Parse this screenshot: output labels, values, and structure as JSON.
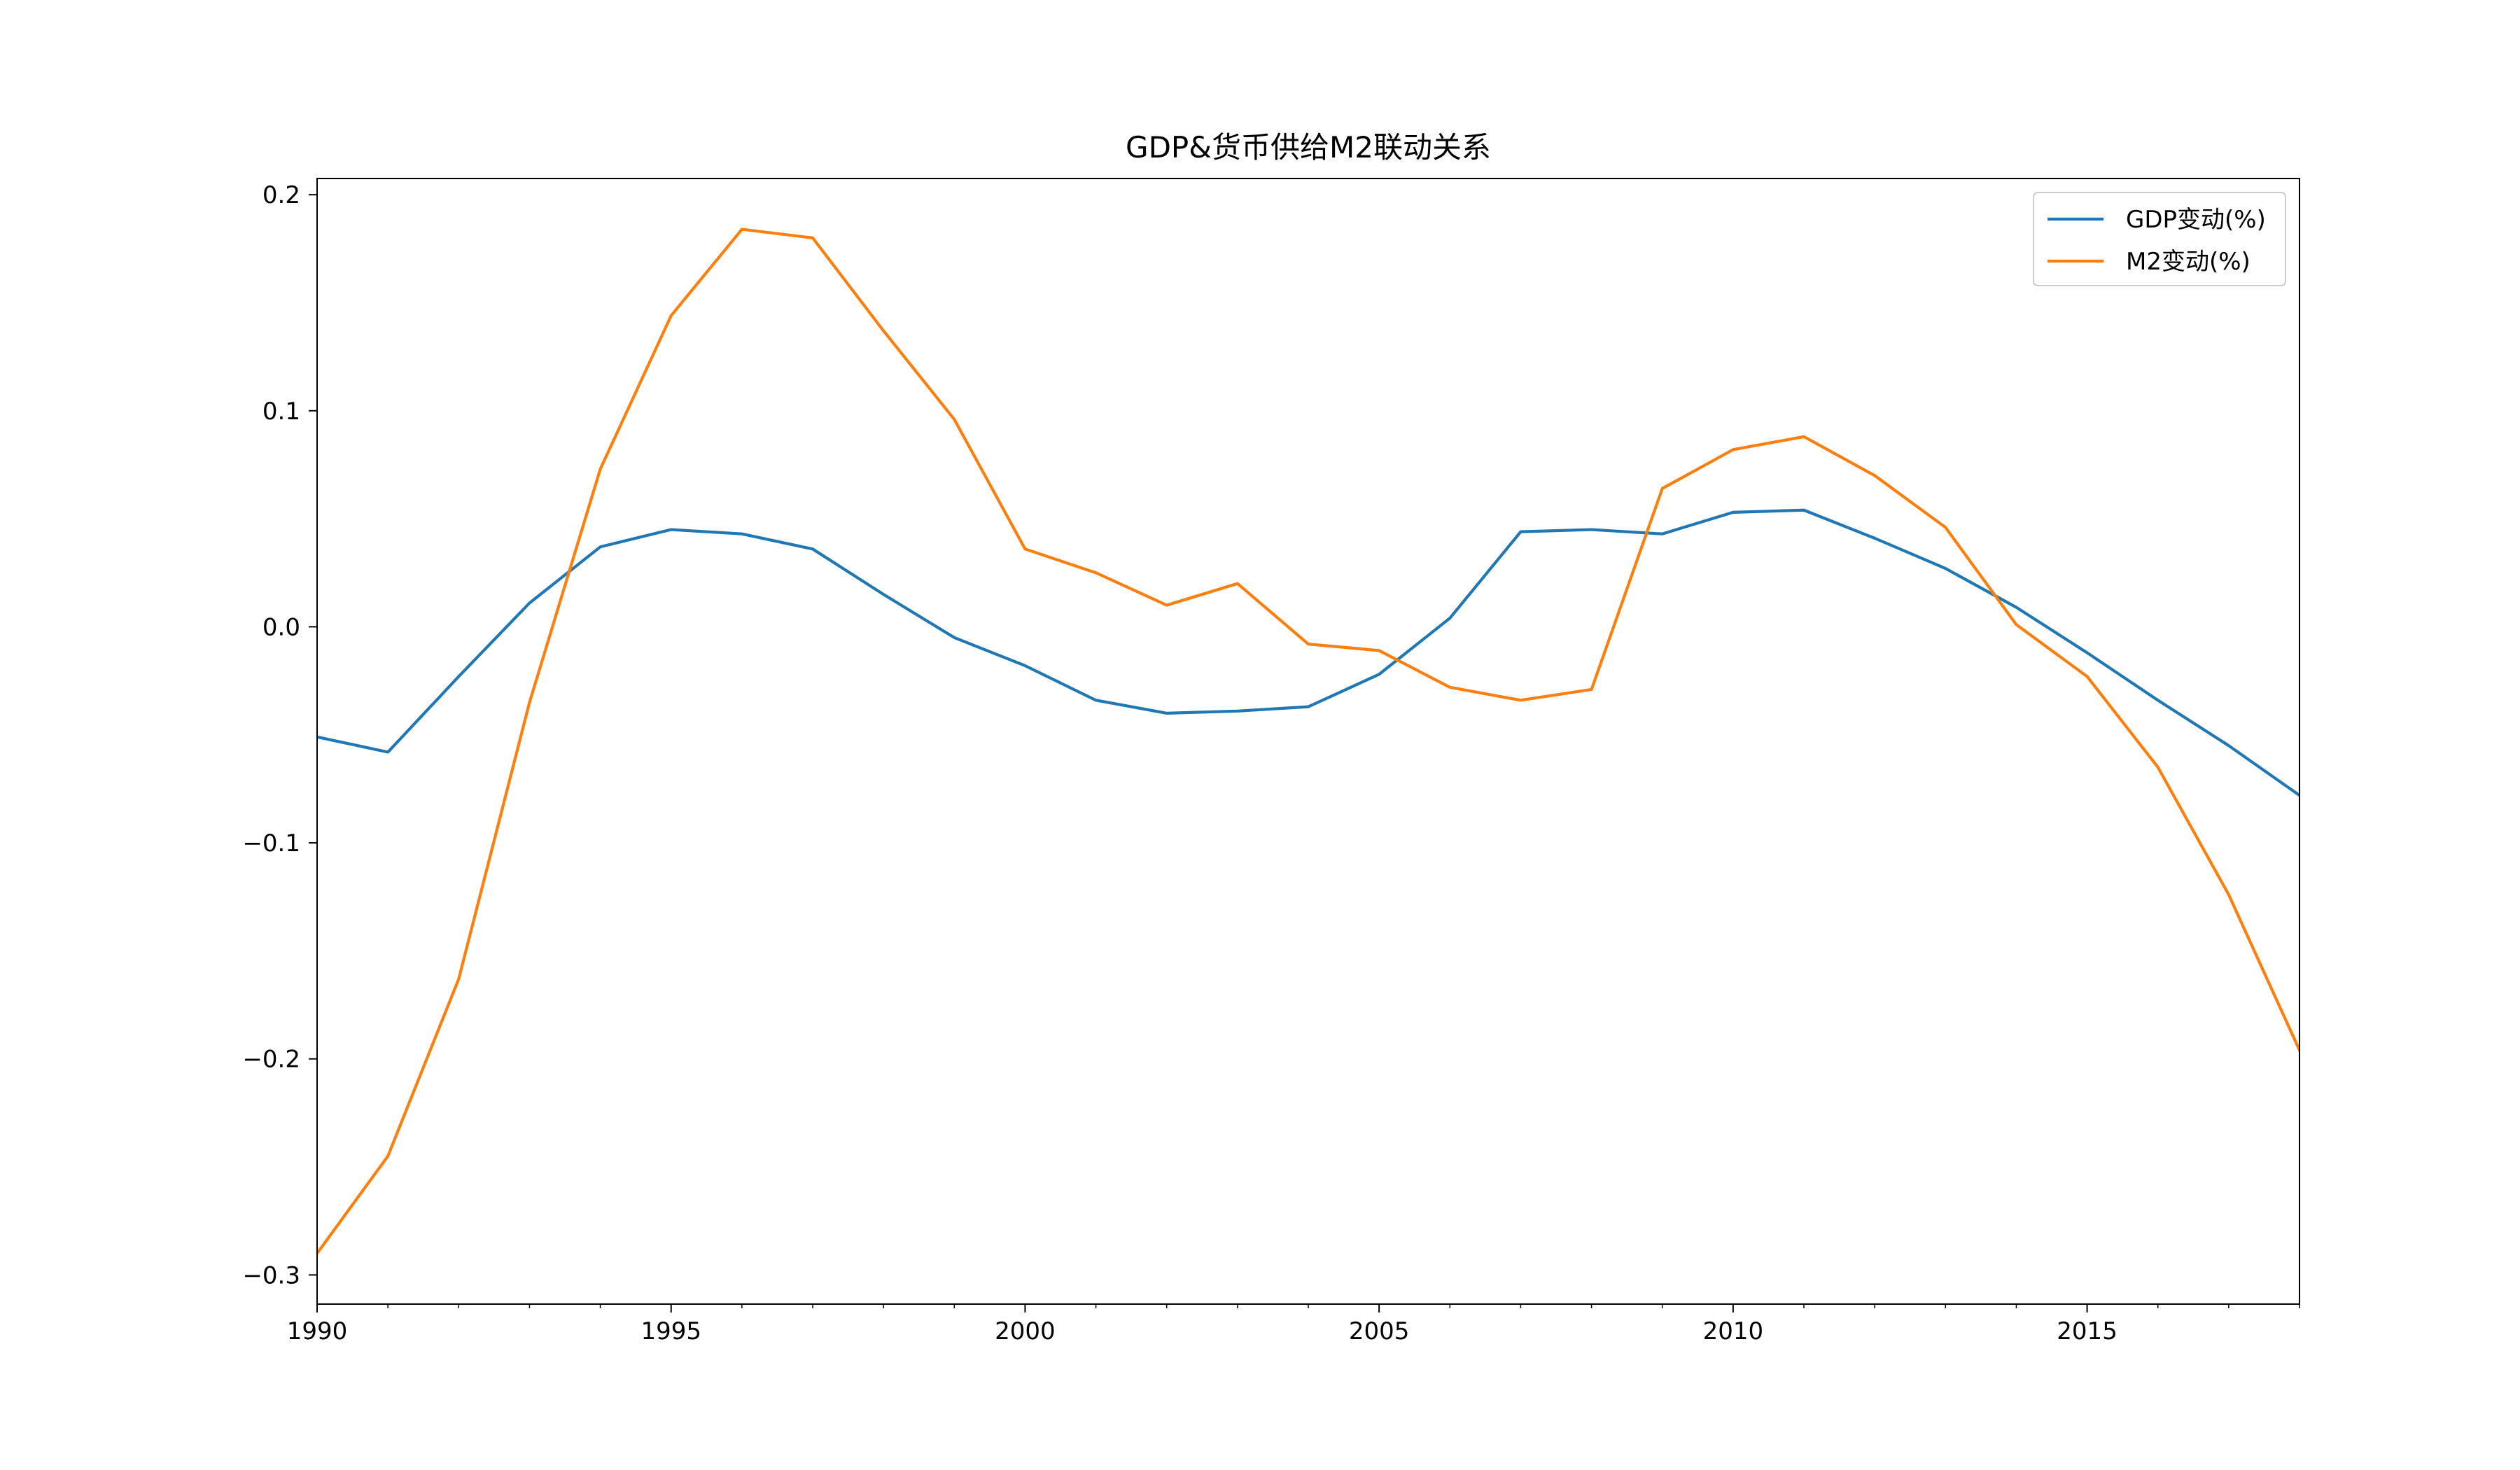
{
  "chart_data": {
    "type": "line",
    "title": "GDP&货币供给M2联动关系",
    "xlabel": "",
    "ylabel": "",
    "xlim": [
      1990,
      2018
    ],
    "ylim": [
      -0.3,
      0.2
    ],
    "x_ticks": [
      1990,
      1995,
      2000,
      2005,
      2010,
      2015
    ],
    "y_ticks": [
      -0.3,
      -0.2,
      -0.1,
      0.0,
      0.1,
      0.2
    ],
    "y_tick_labels": [
      "−0.3",
      "−0.2",
      "−0.1",
      "0.0",
      "0.1",
      "0.2"
    ],
    "grid": false,
    "legend": "top-right",
    "x": [
      1990,
      1991,
      1992,
      1993,
      1994,
      1995,
      1996,
      1997,
      1998,
      1999,
      2000,
      2001,
      2002,
      2003,
      2004,
      2005,
      2006,
      2007,
      2008,
      2009,
      2010,
      2011,
      2012,
      2013,
      2014,
      2015,
      2016,
      2017,
      2018
    ],
    "series": [
      {
        "name": "GDP变动(%)",
        "color": "#1f77b4",
        "values": [
          -0.051,
          -0.058,
          -0.023,
          0.011,
          0.037,
          0.045,
          0.043,
          0.036,
          0.015,
          -0.005,
          -0.018,
          -0.034,
          -0.04,
          -0.039,
          -0.037,
          -0.022,
          0.004,
          0.044,
          0.045,
          0.043,
          0.053,
          0.054,
          0.041,
          0.027,
          0.009,
          -0.012,
          -0.034,
          -0.055,
          -0.078
        ]
      },
      {
        "name": "M2变动(%)",
        "color": "#ff7f0e",
        "values": [
          -0.29,
          -0.245,
          -0.163,
          -0.035,
          0.073,
          0.144,
          0.184,
          0.18,
          0.137,
          0.096,
          0.036,
          0.025,
          0.01,
          0.02,
          -0.008,
          -0.011,
          -0.028,
          -0.034,
          -0.029,
          0.064,
          0.082,
          0.088,
          0.07,
          0.046,
          0.001,
          -0.023,
          -0.065,
          -0.124,
          -0.196
        ]
      }
    ]
  }
}
